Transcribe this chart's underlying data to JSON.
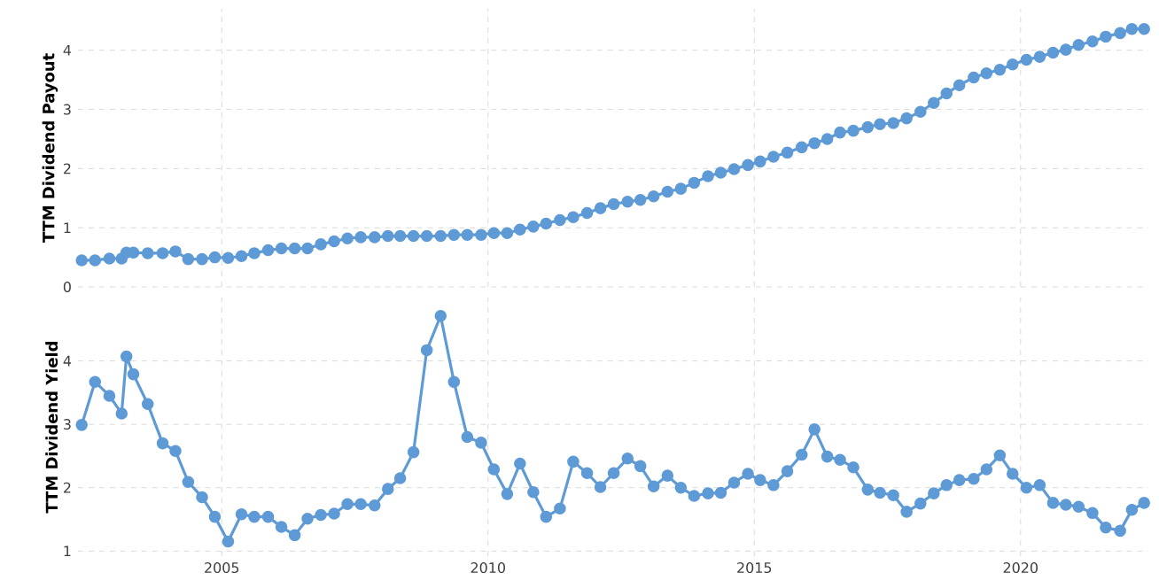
{
  "chart_data": [
    {
      "type": "line",
      "ylabel": "TTM Dividend Payout",
      "color": "#5e9ad6",
      "marker": "circle",
      "grid": true,
      "tick_labels": "y",
      "xlim": [
        2002.3,
        2022.4
      ],
      "xticks": [
        2005,
        2010,
        2015,
        2020
      ],
      "ylim": [
        0,
        4.7
      ],
      "yticks": [
        0,
        1,
        2,
        3,
        4
      ],
      "x": [
        2002.37,
        2002.62,
        2002.89,
        2003.12,
        2003.21,
        2003.34,
        2003.61,
        2003.89,
        2004.13,
        2004.37,
        2004.63,
        2004.87,
        2005.12,
        2005.37,
        2005.61,
        2005.87,
        2006.12,
        2006.37,
        2006.61,
        2006.86,
        2007.11,
        2007.36,
        2007.61,
        2007.87,
        2008.12,
        2008.35,
        2008.6,
        2008.85,
        2009.11,
        2009.36,
        2009.61,
        2009.87,
        2010.11,
        2010.36,
        2010.6,
        2010.85,
        2011.09,
        2011.35,
        2011.6,
        2011.86,
        2012.11,
        2012.36,
        2012.62,
        2012.86,
        2013.11,
        2013.37,
        2013.62,
        2013.87,
        2014.13,
        2014.37,
        2014.62,
        2014.88,
        2015.11,
        2015.36,
        2015.62,
        2015.89,
        2016.13,
        2016.37,
        2016.61,
        2016.86,
        2017.13,
        2017.36,
        2017.61,
        2017.86,
        2018.12,
        2018.37,
        2018.61,
        2018.85,
        2019.12,
        2019.36,
        2019.61,
        2019.85,
        2020.11,
        2020.36,
        2020.61,
        2020.85,
        2021.09,
        2021.35,
        2021.6,
        2021.87,
        2022.09,
        2022.32
      ],
      "values": [
        0.45,
        0.45,
        0.48,
        0.48,
        0.58,
        0.58,
        0.57,
        0.57,
        0.6,
        0.47,
        0.47,
        0.5,
        0.49,
        0.52,
        0.57,
        0.62,
        0.65,
        0.65,
        0.65,
        0.72,
        0.77,
        0.82,
        0.84,
        0.84,
        0.86,
        0.86,
        0.86,
        0.86,
        0.86,
        0.88,
        0.88,
        0.88,
        0.91,
        0.91,
        0.97,
        1.02,
        1.07,
        1.13,
        1.18,
        1.25,
        1.33,
        1.4,
        1.44,
        1.47,
        1.53,
        1.61,
        1.66,
        1.76,
        1.87,
        1.93,
        1.99,
        2.06,
        2.12,
        2.2,
        2.27,
        2.36,
        2.43,
        2.5,
        2.61,
        2.64,
        2.7,
        2.75,
        2.77,
        2.85,
        2.96,
        3.11,
        3.27,
        3.41,
        3.54,
        3.61,
        3.67,
        3.76,
        3.84,
        3.89,
        3.96,
        4.01,
        4.09,
        4.15,
        4.23,
        4.29,
        4.36,
        4.36
      ]
    },
    {
      "type": "line",
      "ylabel": "TTM Dividend Yield",
      "color": "#5e9ad6",
      "marker": "circle",
      "grid": true,
      "xlim": [
        2002.3,
        2022.4
      ],
      "xticks": [
        2005,
        2010,
        2015,
        2020
      ],
      "ylim": [
        0.92,
        5.0
      ],
      "yticks": [
        1,
        2,
        3,
        4
      ],
      "x": [
        2002.37,
        2002.62,
        2002.89,
        2003.12,
        2003.21,
        2003.34,
        2003.61,
        2003.89,
        2004.13,
        2004.37,
        2004.63,
        2004.87,
        2005.12,
        2005.37,
        2005.61,
        2005.87,
        2006.12,
        2006.37,
        2006.61,
        2006.86,
        2007.11,
        2007.36,
        2007.61,
        2007.87,
        2008.12,
        2008.35,
        2008.6,
        2008.85,
        2009.11,
        2009.36,
        2009.61,
        2009.87,
        2010.11,
        2010.36,
        2010.6,
        2010.85,
        2011.09,
        2011.35,
        2011.6,
        2011.86,
        2012.11,
        2012.36,
        2012.62,
        2012.86,
        2013.11,
        2013.37,
        2013.62,
        2013.87,
        2014.13,
        2014.37,
        2014.62,
        2014.88,
        2015.11,
        2015.36,
        2015.62,
        2015.89,
        2016.13,
        2016.37,
        2016.61,
        2016.86,
        2017.13,
        2017.36,
        2017.61,
        2017.86,
        2018.12,
        2018.37,
        2018.61,
        2018.85,
        2019.12,
        2019.36,
        2019.61,
        2019.85,
        2020.11,
        2020.36,
        2020.61,
        2020.85,
        2021.09,
        2021.35,
        2021.6,
        2021.87,
        2022.09,
        2022.32
      ],
      "values": [
        2.99,
        3.67,
        3.45,
        3.17,
        4.07,
        3.79,
        3.32,
        2.7,
        2.58,
        2.09,
        1.85,
        1.54,
        1.15,
        1.58,
        1.54,
        1.54,
        1.38,
        1.25,
        1.51,
        1.57,
        1.59,
        1.74,
        1.74,
        1.72,
        1.98,
        2.15,
        2.56,
        4.17,
        4.71,
        3.67,
        2.8,
        2.71,
        2.29,
        1.9,
        2.38,
        1.93,
        1.54,
        1.67,
        2.41,
        2.23,
        2.01,
        2.23,
        2.46,
        2.34,
        2.02,
        2.19,
        2.0,
        1.87,
        1.91,
        1.92,
        2.08,
        2.22,
        2.12,
        2.04,
        2.26,
        2.52,
        2.92,
        2.49,
        2.44,
        2.32,
        1.97,
        1.92,
        1.88,
        1.62,
        1.75,
        1.91,
        2.04,
        2.12,
        2.14,
        2.29,
        2.51,
        2.22,
        2.0,
        2.04,
        1.76,
        1.73,
        1.7,
        1.6,
        1.37,
        1.32,
        1.65,
        1.76
      ]
    }
  ]
}
